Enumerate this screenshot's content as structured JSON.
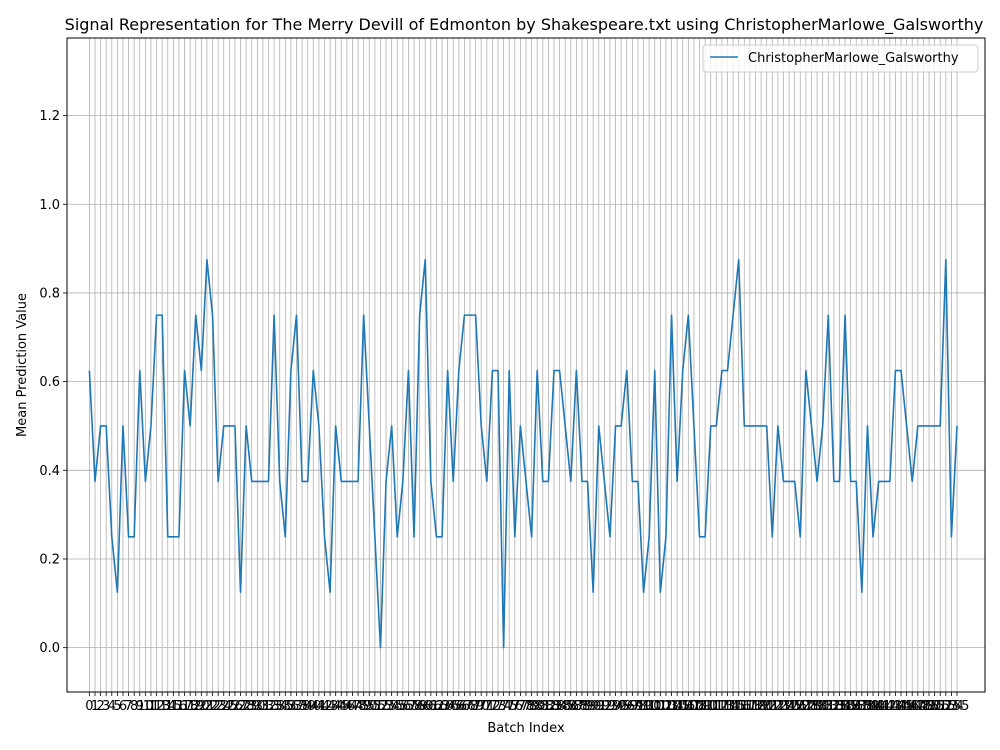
{
  "chart_data": {
    "type": "line",
    "title": "Signal Representation for The Merry Devill of Edmonton by Shakespeare.txt using ChristopherMarlowe_Galsworthy",
    "xlabel": "Batch Index",
    "ylabel": "Mean Prediction Value",
    "xlim": [
      -4,
      160
    ],
    "ylim": [
      -0.1,
      1.375
    ],
    "yticks": [
      0.0,
      0.2,
      0.4,
      0.6,
      0.8,
      1.0,
      1.2
    ],
    "ytick_labels": [
      "0.0",
      "0.2",
      "0.4",
      "0.6",
      "0.8",
      "1.0",
      "1.2"
    ],
    "grid": true,
    "legend_position": "upper-right",
    "color": "#1f77b4",
    "series": [
      {
        "name": "ChristopherMarlowe_Galsworthy",
        "values": [
          0.625,
          0.375,
          0.5,
          0.5,
          0.25,
          0.125,
          0.5,
          0.25,
          0.25,
          0.625,
          0.375,
          0.5,
          0.75,
          0.75,
          0.25,
          0.25,
          0.25,
          0.625,
          0.5,
          0.75,
          0.625,
          0.875,
          0.75,
          0.375,
          0.5,
          0.5,
          0.5,
          0.125,
          0.5,
          0.375,
          0.375,
          0.375,
          0.375,
          0.75,
          0.375,
          0.25,
          0.625,
          0.75,
          0.375,
          0.375,
          0.625,
          0.5,
          0.25,
          0.125,
          0.5,
          0.375,
          0.375,
          0.375,
          0.375,
          0.75,
          0.5,
          0.25,
          0.0,
          0.375,
          0.5,
          0.25,
          0.375,
          0.625,
          0.25,
          0.75,
          0.875,
          0.375,
          0.25,
          0.25,
          0.625,
          0.375,
          0.625,
          0.75,
          0.75,
          0.75,
          0.5,
          0.375,
          0.625,
          0.625,
          0.0,
          0.625,
          0.25,
          0.5,
          0.375,
          0.25,
          0.625,
          0.375,
          0.375,
          0.625,
          0.625,
          0.5,
          0.375,
          0.625,
          0.375,
          0.375,
          0.125,
          0.5,
          0.375,
          0.25,
          0.5,
          0.5,
          0.625,
          0.375,
          0.375,
          0.125,
          0.25,
          0.625,
          0.125,
          0.25,
          0.75,
          0.375,
          0.625,
          0.75,
          0.5,
          0.25,
          0.25,
          0.5,
          0.5,
          0.625,
          0.625,
          0.75,
          0.875,
          0.5,
          0.5,
          0.5,
          0.5,
          0.5,
          0.25,
          0.5,
          0.375,
          0.375,
          0.375,
          0.25,
          0.625,
          0.5,
          0.375,
          0.5,
          0.75,
          0.375,
          0.375,
          0.75,
          0.375,
          0.375,
          0.125,
          0.5,
          0.25,
          0.375,
          0.375,
          0.375,
          0.625,
          0.625,
          0.5,
          0.375,
          0.5,
          0.5,
          0.5,
          0.5,
          0.5,
          0.875,
          0.25,
          0.5
        ]
      }
    ]
  }
}
